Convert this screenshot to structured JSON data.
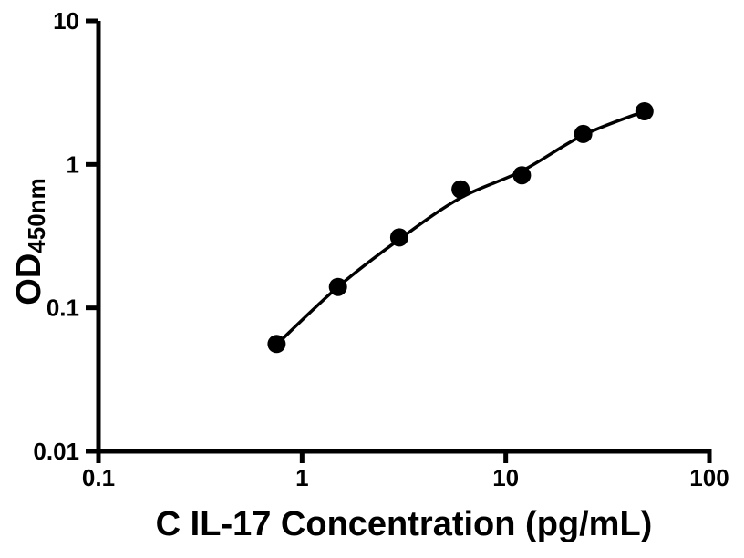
{
  "page": {
    "background_color": "#ffffff"
  },
  "chart_data": {
    "type": "scatter",
    "title": "",
    "xlabel": "C IL-17 Concentration (pg/mL)",
    "ylabel_main": "OD",
    "ylabel_subscript": "450nm",
    "x_scale": "log",
    "y_scale": "log",
    "xlim": [
      0.1,
      100
    ],
    "ylim": [
      0.01,
      10
    ],
    "grid": false,
    "legend": "none",
    "x_ticks": [
      {
        "value": 0.1,
        "label": "0.1"
      },
      {
        "value": 1,
        "label": "1"
      },
      {
        "value": 10,
        "label": "10"
      },
      {
        "value": 100,
        "label": "100"
      }
    ],
    "y_ticks": [
      {
        "value": 0.01,
        "label": "0.01"
      },
      {
        "value": 0.1,
        "label": "0.1"
      },
      {
        "value": 1,
        "label": "1"
      },
      {
        "value": 10,
        "label": "10"
      }
    ],
    "series": [
      {
        "marker": "filled-circle",
        "color": "#000000",
        "points": [
          {
            "x": 0.75,
            "y": 0.056
          },
          {
            "x": 1.5,
            "y": 0.14
          },
          {
            "x": 3,
            "y": 0.31
          },
          {
            "x": 6,
            "y": 0.67
          },
          {
            "x": 12,
            "y": 0.84
          },
          {
            "x": 24,
            "y": 1.63
          },
          {
            "x": 48,
            "y": 2.35
          }
        ]
      }
    ],
    "fit_curve": {
      "color": "#000000",
      "anchors": [
        {
          "x": 0.75,
          "y": 0.0555
        },
        {
          "x": 1.5,
          "y": 0.14
        },
        {
          "x": 3,
          "y": 0.3
        },
        {
          "x": 6,
          "y": 0.585
        },
        {
          "x": 12,
          "y": 0.9
        },
        {
          "x": 24,
          "y": 1.6
        },
        {
          "x": 48,
          "y": 2.35
        }
      ]
    },
    "style": {
      "axis_color": "#000000",
      "text_color": "#000000",
      "marker_radius": 10,
      "curve_width": 3.5,
      "axis_width": 5,
      "tick_length": 13
    }
  }
}
